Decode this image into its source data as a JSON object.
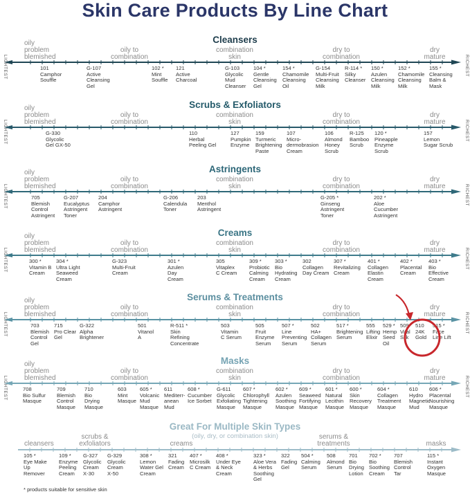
{
  "title": "Skin Care Products By Line Chart",
  "footnote": "* products suitable for sensitive skin",
  "highlight_color": "#c8272c",
  "highlighted_products": [
    "510",
    "515 *"
  ],
  "chart_data": {
    "type": "line",
    "title": "Skin Care Products By Line Chart",
    "axis_ends": {
      "left": "LIGHTEST",
      "right": "RICHEST"
    },
    "skin_type_scale": [
      "oily\nproblem\nblemished",
      "oily to\ncombination",
      "combination\nskin",
      "dry to\ncombination",
      "dry\nmature"
    ],
    "sections": [
      {
        "title": "Cleansers",
        "color": "#1e3d4c",
        "line_color": "#1f4654",
        "products": [
          {
            "code": "101",
            "name": "Camphor\nSouffle"
          },
          {
            "code": "G-107",
            "name": "Active\nCleansing\nGel"
          },
          {
            "code": "102 *",
            "name": "Mint\nSouffle"
          },
          {
            "code": "121",
            "name": "Active\nCharcoal"
          },
          {
            "code": "G-103",
            "name": "Glycolic\nMud\nCleanser"
          },
          {
            "code": "104 *",
            "name": "Gentle\nCleansing\nGel"
          },
          {
            "code": "154 *",
            "name": "Chamomile\nCleansing\nOil"
          },
          {
            "code": "G-154",
            "name": "Multi-Fruit\nCleansing\nMilk"
          },
          {
            "code": "R-114 *",
            "name": "Silky\nCleanser"
          },
          {
            "code": "150 *",
            "name": "Azulen\nCleansing\nMilk"
          },
          {
            "code": "152 *",
            "name": "Chamomile\nCleansing\nMilk"
          },
          {
            "code": "155 *",
            "name": "Cleansing\nBalm &\nMask"
          }
        ]
      },
      {
        "title": "Scrubs & Exfoliators",
        "color": "#245a6a",
        "line_color": "#27596a",
        "products": [
          {
            "code": "G-330",
            "name": "Glycolic\nGel GX-50"
          },
          {
            "code": "110",
            "name": "Herbal\nPeeling Gel"
          },
          {
            "code": "127",
            "name": "Pumpkin\nEnzyme"
          },
          {
            "code": "159",
            "name": "Turmeric\nBrightening\nPaste"
          },
          {
            "code": "107",
            "name": "Micro-\ndermobrasion\nCream"
          },
          {
            "code": "106",
            "name": "Almond\nHoney\nScrub"
          },
          {
            "code": "R-125",
            "name": "Bamboo\nScrub"
          },
          {
            "code": "120 *",
            "name": "Pineapple\nEnzyme\nScrub"
          },
          {
            "code": "157",
            "name": "Lemon\nSugar Scrub"
          }
        ]
      },
      {
        "title": "Astringents",
        "color": "#2c6677",
        "line_color": "#2f6878",
        "products": [
          {
            "code": "705",
            "name": "Blemish\nControl\nAstringent"
          },
          {
            "code": "G-207",
            "name": "Eucalyptus\nAstringent\nToner"
          },
          {
            "code": "204",
            "name": "Camphor\nAstringent"
          },
          {
            "code": "G-206",
            "name": "Calendula\nToner"
          },
          {
            "code": "203",
            "name": "Menthol\nAstringent"
          },
          {
            "code": "G-205 *",
            "name": "Ginseng\nAstringent\nToner"
          },
          {
            "code": "202 *",
            "name": "Aloe\nCucumber\nAstringent"
          }
        ]
      },
      {
        "title": "Creams",
        "color": "#3a7585",
        "line_color": "#3e7b8b",
        "products": [
          {
            "code": "300 *",
            "name": "Vitamin B\nCream"
          },
          {
            "code": "304 *",
            "name": "Ultra Light\nSeaweed\nCream"
          },
          {
            "code": "G-323",
            "name": "Multi-Fruit\nCream"
          },
          {
            "code": "301 *",
            "name": "Azulen\nDay\nCream"
          },
          {
            "code": "305",
            "name": "Vitaplex\nC Cream"
          },
          {
            "code": "309 *",
            "name": "Probiotic\nCalming\nCream"
          },
          {
            "code": "303 *",
            "name": "Bio\nHydrating\nCream"
          },
          {
            "code": "302",
            "name": "Collagen\nDay Cream"
          },
          {
            "code": "307 *",
            "name": "Revitalizing\nCream"
          },
          {
            "code": "401 *",
            "name": "Collagen\nElastin\nCream"
          },
          {
            "code": "402 *",
            "name": "Placental\nCream"
          },
          {
            "code": "403 *",
            "name": "Bio\nEffective\nCream"
          }
        ]
      },
      {
        "title": "Serums & Treatments",
        "color": "#5c8fa0",
        "line_color": "#5a93a4",
        "products": [
          {
            "code": "703",
            "name": "Blemish\nControl\nGel"
          },
          {
            "code": "715",
            "name": "Pro Clear\nGel"
          },
          {
            "code": "G-322",
            "name": "Alpha\nBrightener"
          },
          {
            "code": "501",
            "name": "Vitanol\nA"
          },
          {
            "code": "R-511 *",
            "name": "Skin\nRefining\nConcentrate"
          },
          {
            "code": "503",
            "name": "Vitamin\nC Serum"
          },
          {
            "code": "505",
            "name": "Fruit\nEnzyme\nSerum"
          },
          {
            "code": "507 *",
            "name": "Line\nPreventing\nSerum"
          },
          {
            "code": "502",
            "name": "HA+\nCollagen\nSerum"
          },
          {
            "code": "517 *",
            "name": "Brightening\nSerum"
          },
          {
            "code": "555",
            "name": "Lifting\nElixir"
          },
          {
            "code": "529 *",
            "name": "Hemp\nSeed\nOil"
          },
          {
            "code": "509",
            "name": "Vital\nSilk"
          },
          {
            "code": "510",
            "name": "24K\nGold"
          },
          {
            "code": "515 *",
            "name": "Face\nLine Lift"
          }
        ]
      },
      {
        "title": "Masks",
        "color": "#75a3b3",
        "line_color": "#76a7b6",
        "products": [
          {
            "code": "708",
            "name": "Bio Sulfur\nMasque"
          },
          {
            "code": "709",
            "name": "Blemish\nControl\nMasque"
          },
          {
            "code": "710",
            "name": "Bio\nDrying\nMasque"
          },
          {
            "code": "603",
            "name": "Mint\nMasque"
          },
          {
            "code": "605 *",
            "name": "Volcanic\nMud\nMasque"
          },
          {
            "code": "611",
            "name": "Mediterr-\nanean\nMud"
          },
          {
            "code": "608 *",
            "name": "Cucumber\nIce Sorbet"
          },
          {
            "code": "G-611",
            "name": "Glycolic\nExfoliating\nMasque"
          },
          {
            "code": "607 *",
            "name": "Chlorophyll\nTightening\nMasque"
          },
          {
            "code": "602 *",
            "name": "Azulen\nSoothing\nMasque"
          },
          {
            "code": "609 *",
            "name": "Seaweed\nFortifying\nMasque"
          },
          {
            "code": "601 *",
            "name": "Natural\nLecithin\nMasque"
          },
          {
            "code": "600 *",
            "name": "Skin\nRecovery\nMasque"
          },
          {
            "code": "604 *",
            "name": "Collagen\nTreatment\nMasque"
          },
          {
            "code": "610",
            "name": "Hydro\nMagnetic\nMud"
          },
          {
            "code": "606 *",
            "name": "Placental\nNourishing\nMasque"
          }
        ]
      },
      {
        "title": "Great For Multiple Skin Types",
        "subtitle": "(oily, dry, or combination skin)",
        "color": "#9ab8c4",
        "line_color": "#9dbcc8",
        "category_labels": [
          "cleansers",
          "scrubs &\nexfoliators",
          "creams",
          "serums &\ntreatments",
          "masks"
        ],
        "products": [
          {
            "code": "105 *",
            "name": "Eye Make\nUp\nRemover"
          },
          {
            "code": "109 *",
            "name": "Enzyme\nPeeling\nCream"
          },
          {
            "code": "G-327",
            "name": "Glycolic\nCream\nX-30"
          },
          {
            "code": "G-329",
            "name": "Glycolic\nCream\nX-50"
          },
          {
            "code": "308 *",
            "name": "Lemon\nWater Gel\nCream"
          },
          {
            "code": "321",
            "name": "Fading\nCream"
          },
          {
            "code": "407 *",
            "name": "Microsilk\nC Cream"
          },
          {
            "code": "408 *",
            "name": "Under Eye\n& Neck\nCream"
          },
          {
            "code": "323 *",
            "name": "Aloe Vera\n& Herbs\nSoothing\nGel"
          },
          {
            "code": "322",
            "name": "Fading\nGel"
          },
          {
            "code": "504 *",
            "name": "Calming\nSerum"
          },
          {
            "code": "508",
            "name": "Almond\nSerum"
          },
          {
            "code": "701",
            "name": "Bio\nDrying\nLotion"
          },
          {
            "code": "702 *",
            "name": "Bio\nSoothing\nCream"
          },
          {
            "code": "707",
            "name": "Blemish\nControl\nTar"
          },
          {
            "code": "115 *",
            "name": "Instant\nOxygen\nMasque"
          }
        ]
      }
    ]
  }
}
